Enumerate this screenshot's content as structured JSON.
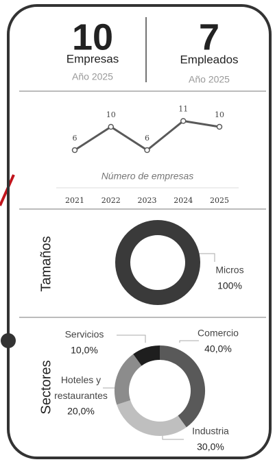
{
  "kpis": [
    {
      "value": 10,
      "label": "Empresas",
      "period": "Año 2025"
    },
    {
      "value": 7,
      "label": "Empleados",
      "period": "Año 2025"
    }
  ],
  "chart_data": [
    {
      "type": "line",
      "title": "Número de empresas",
      "categories": [
        "2021",
        "2022",
        "2023",
        "2024",
        "2025"
      ],
      "values": [
        6,
        10,
        6,
        11,
        10
      ],
      "color": "#595959"
    },
    {
      "type": "donut",
      "title": "Tamaños",
      "categories": [
        "Micros"
      ],
      "values": [
        100
      ],
      "value_labels": [
        "100%"
      ],
      "colors": [
        "#3a3a3a"
      ]
    },
    {
      "type": "donut",
      "title": "Sectores",
      "categories": [
        "Comercio",
        "Industria",
        "Hoteles y restaurantes",
        "Servicios"
      ],
      "values": [
        40,
        30,
        20,
        10
      ],
      "value_labels": [
        "40,0%",
        "30,0%",
        "20,0%",
        "10,0%"
      ],
      "colors": [
        "#595959",
        "#bfbfbf",
        "#8c8c8c",
        "#1e1e1e"
      ]
    }
  ]
}
